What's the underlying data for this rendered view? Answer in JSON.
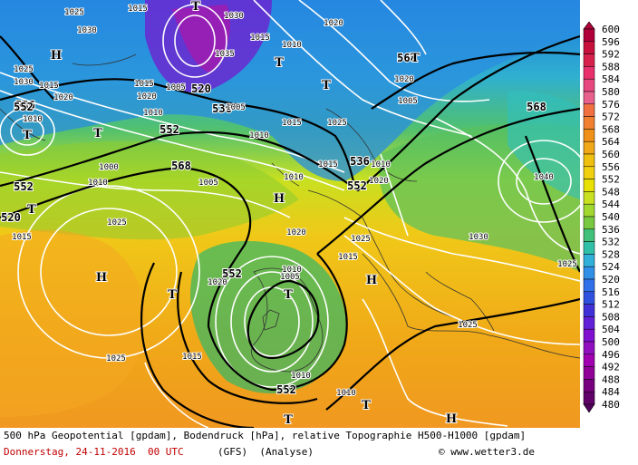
{
  "map": {
    "description_of_fields": "500 hPa geopotential (black contours), surface pressure (white isobars), relative topography shaded",
    "geopotential_labels": [
      "536",
      "520",
      "536",
      "552",
      "568",
      "552",
      "568",
      "552",
      "536",
      "552",
      "520",
      "568",
      "552",
      "552"
    ],
    "isobar_labels": [
      "1025",
      "1030",
      "1015",
      "1020",
      "1030",
      "1035",
      "1015",
      "1010",
      "1020",
      "1025",
      "1030",
      "1015",
      "1010",
      "1015",
      "1020",
      "1010",
      "1005",
      "1015",
      "1010",
      "1005",
      "1000",
      "1025",
      "1015",
      "1010",
      "1020",
      "1010",
      "1005",
      "1010",
      "1020",
      "1025",
      "1015",
      "1040",
      "1020",
      "1005",
      "1025",
      "1030",
      "1025",
      "1015",
      "1025",
      "1020",
      "1010",
      "1005",
      "1010",
      "1025",
      "1015",
      "1010"
    ],
    "pressure_centers": [
      "H",
      "T",
      "T",
      "T",
      "T",
      "T",
      "T",
      "T",
      "H",
      "H",
      "H",
      "T",
      "T",
      "T",
      "H",
      "T"
    ]
  },
  "legend": {
    "values": [
      "600",
      "596",
      "592",
      "588",
      "584",
      "580",
      "576",
      "572",
      "568",
      "564",
      "560",
      "556",
      "552",
      "548",
      "544",
      "540",
      "536",
      "532",
      "528",
      "524",
      "520",
      "516",
      "512",
      "508",
      "504",
      "500",
      "496",
      "492",
      "488",
      "484",
      "480"
    ],
    "colors": [
      "#b0003a",
      "#c8103c",
      "#d8204c",
      "#e8306c",
      "#e84880",
      "#e8608c",
      "#f07040",
      "#f08030",
      "#f09018",
      "#f0a818",
      "#f0c010",
      "#f0d010",
      "#e8e000",
      "#c8e020",
      "#a0d830",
      "#78c840",
      "#40c078",
      "#30c0a8",
      "#30b0d8",
      "#3090e8",
      "#3070e8",
      "#3050e0",
      "#4030d8",
      "#6020d8",
      "#8010d0",
      "#9010c0",
      "#a000b0",
      "#900098",
      "#780080",
      "#600068",
      "#500058"
    ]
  },
  "captions": {
    "line1": "500 hPa Geopotential [gpdam], Bodendruck [hPa], relative Topographie H500-H1000 [gpdam]",
    "date": "Donnerstag, 24-11-2016  00 UTC",
    "model": "(GFS)  (Analyse)",
    "credit": "© www.wetter3.de"
  }
}
